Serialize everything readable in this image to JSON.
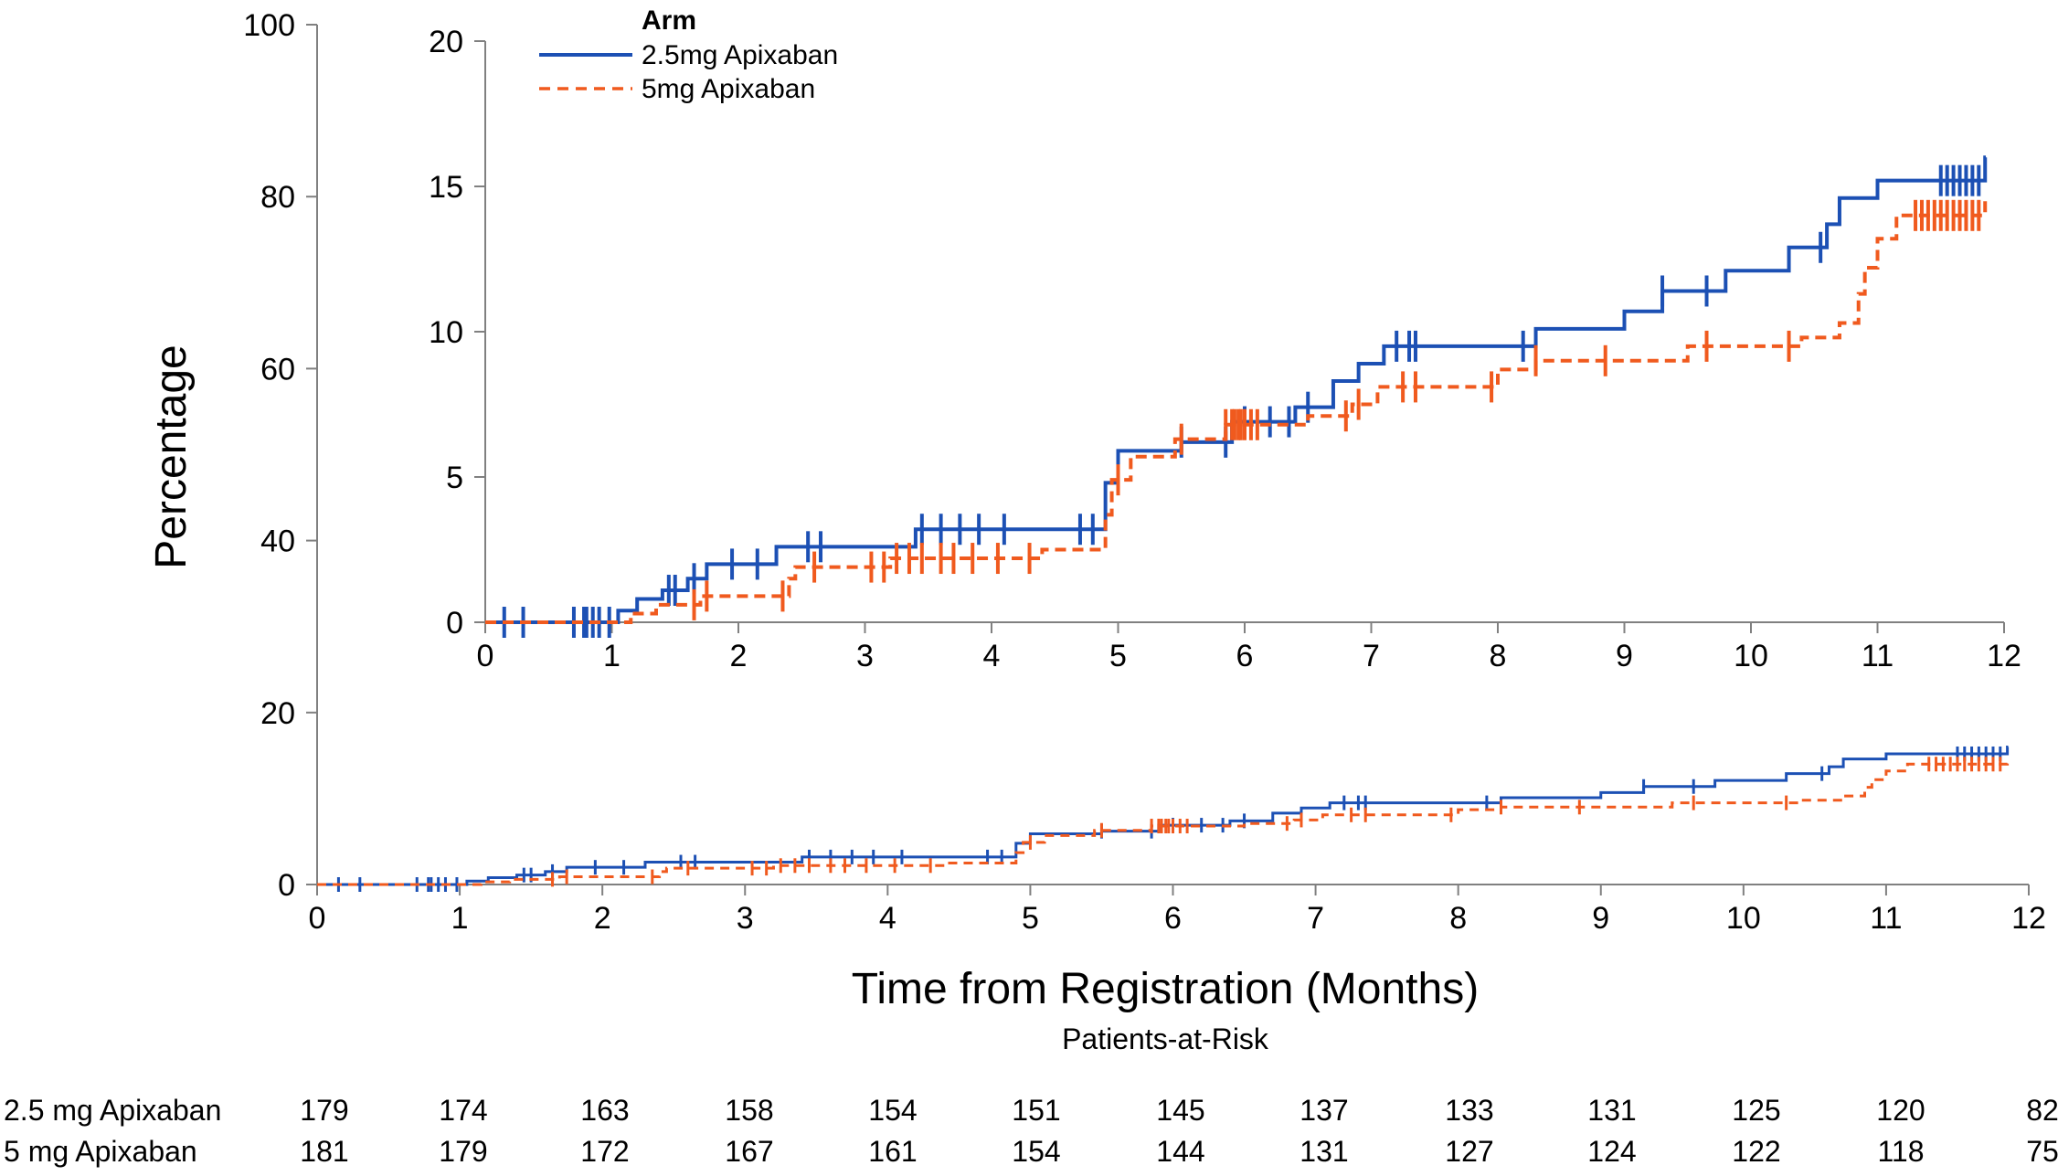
{
  "chart_data": [
    {
      "type": "line",
      "name": "main",
      "title": "",
      "xlabel": "Time from Registration (Months)",
      "ylabel": "Percentage",
      "xlim": [
        0,
        12
      ],
      "ylim": [
        0,
        100
      ],
      "x_ticks": [
        0,
        1,
        2,
        3,
        4,
        5,
        6,
        7,
        8,
        9,
        10,
        11,
        12
      ],
      "y_ticks": [
        0,
        20,
        40,
        60,
        80,
        100
      ],
      "colors": {
        "series1": "#1c50b4",
        "series2": "#f05a1e",
        "axis": "#808080"
      },
      "series": [
        {
          "name": "2.5mg Apixaban",
          "style": "solid",
          "steps": [
            [
              0,
              0
            ],
            [
              1.05,
              0.4
            ],
            [
              1.2,
              0.8
            ],
            [
              1.4,
              1.1
            ],
            [
              1.6,
              1.5
            ],
            [
              1.75,
              2.0
            ],
            [
              2.3,
              2.6
            ],
            [
              3.4,
              3.2
            ],
            [
              4.9,
              4.8
            ],
            [
              5.0,
              5.9
            ],
            [
              5.5,
              6.2
            ],
            [
              5.9,
              6.9
            ],
            [
              6.4,
              7.4
            ],
            [
              6.7,
              8.3
            ],
            [
              6.9,
              8.9
            ],
            [
              7.1,
              9.5
            ],
            [
              8.3,
              10.1
            ],
            [
              9.0,
              10.7
            ],
            [
              9.3,
              11.4
            ],
            [
              9.8,
              12.1
            ],
            [
              10.3,
              12.9
            ],
            [
              10.6,
              13.7
            ],
            [
              10.7,
              14.6
            ],
            [
              11.0,
              15.2
            ],
            [
              11.85,
              16.0
            ]
          ],
          "censor_x": [
            0.15,
            0.3,
            0.7,
            0.78,
            0.8,
            0.85,
            0.9,
            0.98,
            1.45,
            1.5,
            1.65,
            1.95,
            2.15,
            2.55,
            2.65,
            3.45,
            3.6,
            3.75,
            3.9,
            4.1,
            4.7,
            4.8,
            5.5,
            5.85,
            6.0,
            6.2,
            6.35,
            6.5,
            7.2,
            7.3,
            7.35,
            8.2,
            9.3,
            9.65,
            10.55,
            11.5,
            11.55,
            11.6,
            11.65,
            11.7,
            11.75,
            11.8
          ]
        },
        {
          "name": "5mg Apixaban",
          "style": "dashed",
          "steps": [
            [
              0,
              0
            ],
            [
              1.15,
              0.3
            ],
            [
              1.35,
              0.6
            ],
            [
              1.7,
              0.9
            ],
            [
              2.4,
              1.5
            ],
            [
              2.45,
              1.9
            ],
            [
              3.2,
              2.2
            ],
            [
              4.4,
              2.5
            ],
            [
              4.9,
              3.7
            ],
            [
              4.95,
              4.9
            ],
            [
              5.1,
              5.7
            ],
            [
              5.45,
              6.3
            ],
            [
              5.85,
              6.8
            ],
            [
              6.5,
              7.1
            ],
            [
              6.85,
              7.5
            ],
            [
              7.05,
              8.1
            ],
            [
              8.0,
              8.7
            ],
            [
              8.3,
              9.0
            ],
            [
              9.5,
              9.5
            ],
            [
              10.4,
              9.8
            ],
            [
              10.7,
              10.3
            ],
            [
              10.85,
              11.3
            ],
            [
              10.9,
              12.2
            ],
            [
              11.0,
              13.2
            ],
            [
              11.15,
              14.0
            ],
            [
              11.85,
              14.6
            ]
          ],
          "censor_x": [
            1.65,
            1.75,
            2.35,
            2.6,
            3.05,
            3.15,
            3.25,
            3.35,
            3.45,
            3.6,
            3.7,
            3.85,
            4.05,
            4.3,
            5.0,
            5.5,
            5.85,
            5.9,
            5.92,
            5.95,
            5.97,
            6.0,
            6.05,
            6.1,
            6.8,
            6.9,
            7.25,
            7.35,
            7.95,
            8.3,
            8.85,
            9.65,
            10.3,
            11.3,
            11.35,
            11.4,
            11.45,
            11.5,
            11.55,
            11.6,
            11.65,
            11.7,
            11.75,
            11.8
          ]
        }
      ]
    },
    {
      "type": "line",
      "name": "inset",
      "title": "",
      "xlabel": "",
      "ylabel": "",
      "xlim": [
        0,
        12
      ],
      "ylim": [
        0,
        20
      ],
      "x_ticks": [
        0,
        1,
        2,
        3,
        4,
        5,
        6,
        7,
        8,
        9,
        10,
        11,
        12
      ],
      "y_ticks": [
        0,
        5,
        10,
        15,
        20
      ],
      "note": "Zoomed view of the same two series (shared with main chart)"
    }
  ],
  "legend": {
    "title": "Arm",
    "items": [
      "2.5mg Apixaban",
      "5mg Apixaban"
    ]
  },
  "risk_table": {
    "title": "Patients-at-Risk",
    "rows": [
      {
        "label": "2.5 mg Apixaban",
        "values": [
          "179",
          "174",
          "163",
          "158",
          "154",
          "151",
          "145",
          "137",
          "133",
          "131",
          "125",
          "120",
          "82"
        ]
      },
      {
        "label": "5 mg Apixaban",
        "values": [
          "181",
          "179",
          "172",
          "167",
          "161",
          "154",
          "144",
          "131",
          "127",
          "124",
          "122",
          "118",
          "75"
        ]
      }
    ]
  }
}
